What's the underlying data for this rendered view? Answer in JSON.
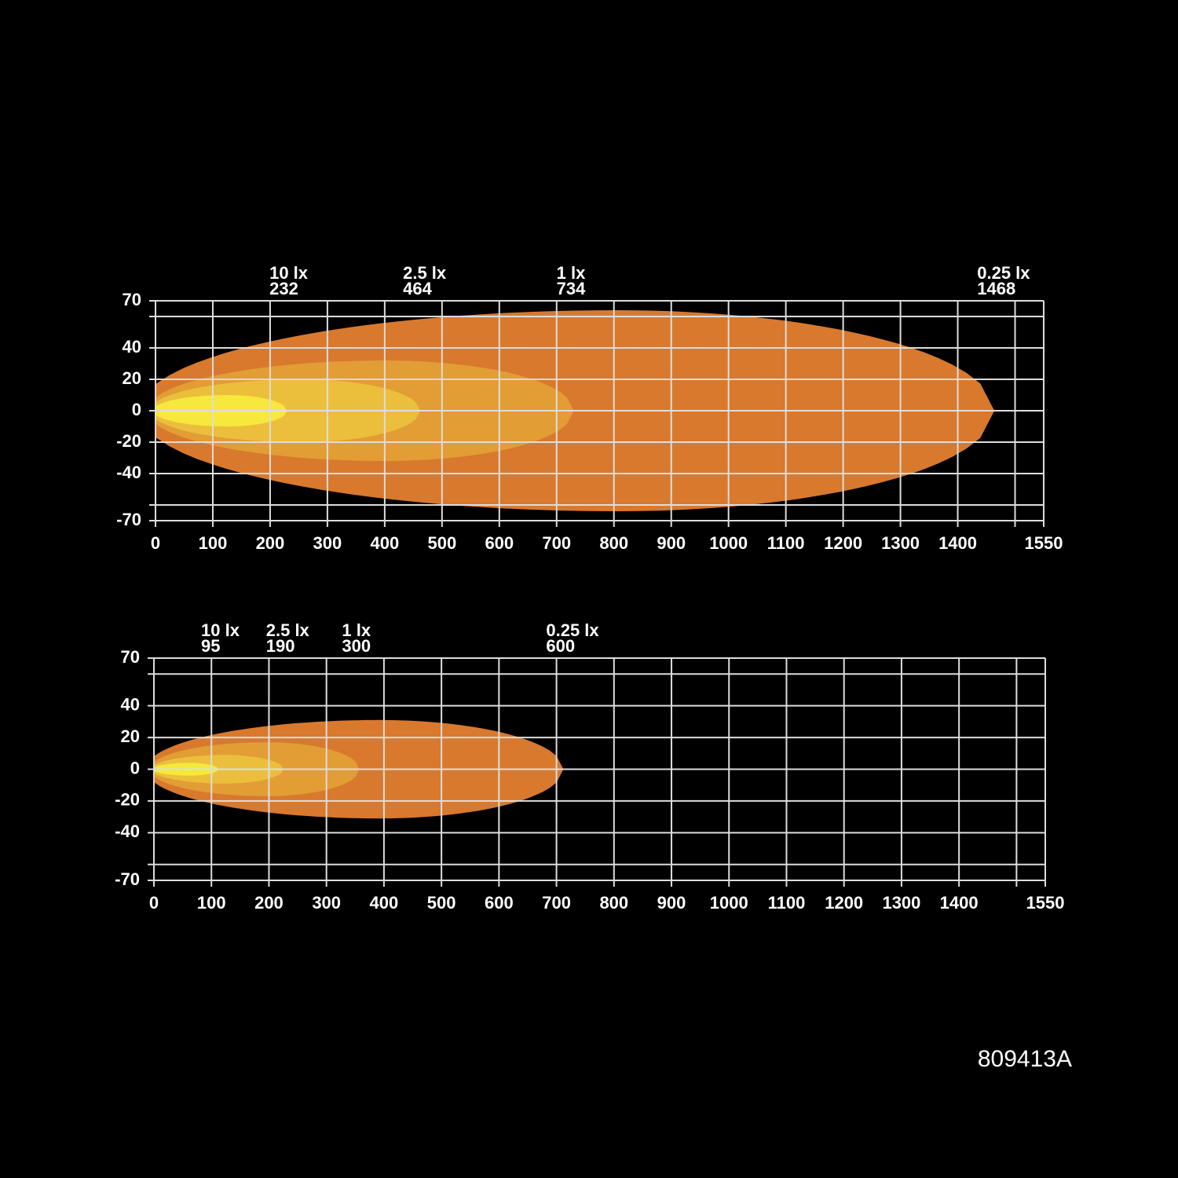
{
  "chart_data": [
    {
      "type": "isolux",
      "xlim": [
        0,
        1550
      ],
      "xticks": [
        0,
        100,
        200,
        300,
        400,
        500,
        600,
        700,
        800,
        900,
        1000,
        1100,
        1200,
        1300,
        1400,
        1550
      ],
      "minor_xticks": [
        1500
      ],
      "ylim": [
        -70,
        70
      ],
      "yticks": [
        70,
        40,
        20,
        0,
        -20,
        -40,
        -70
      ],
      "minor_yticks": [
        60,
        -60
      ],
      "grid": true,
      "series": [
        {
          "name": "10 lx",
          "distance": 232,
          "reach": 229,
          "half_width": 10,
          "color": "#f6e83c"
        },
        {
          "name": "2.5 lx",
          "distance": 464,
          "reach": 462,
          "half_width": 20,
          "color": "#ebbf3c"
        },
        {
          "name": "1 lx",
          "distance": 734,
          "reach": 730,
          "half_width": 32,
          "color": "#e29d34"
        },
        {
          "name": "0.25 lx",
          "distance": 1468,
          "reach": 1464,
          "half_width": 64,
          "color": "#d8792e"
        }
      ]
    },
    {
      "type": "isolux",
      "xlim": [
        0,
        1550
      ],
      "xticks": [
        0,
        100,
        200,
        300,
        400,
        500,
        600,
        700,
        800,
        900,
        1000,
        1100,
        1200,
        1300,
        1400,
        1550
      ],
      "minor_xticks": [
        1500
      ],
      "ylim": [
        -70,
        70
      ],
      "yticks": [
        70,
        40,
        20,
        0,
        -20,
        -40,
        -70
      ],
      "minor_yticks": [
        60,
        -60
      ],
      "grid": true,
      "series": [
        {
          "name": "10 lx",
          "distance": 95,
          "reach": 112,
          "half_width": 4,
          "color": "#f6e83c"
        },
        {
          "name": "2.5 lx",
          "distance": 190,
          "reach": 225,
          "half_width": 9,
          "color": "#ebbf3c"
        },
        {
          "name": "1 lx",
          "distance": 300,
          "reach": 357,
          "half_width": 17,
          "color": "#e29d34"
        },
        {
          "name": "0.25 lx",
          "distance": 600,
          "reach": 712,
          "half_width": 31,
          "color": "#d8792e"
        }
      ]
    }
  ],
  "code": "809413A"
}
